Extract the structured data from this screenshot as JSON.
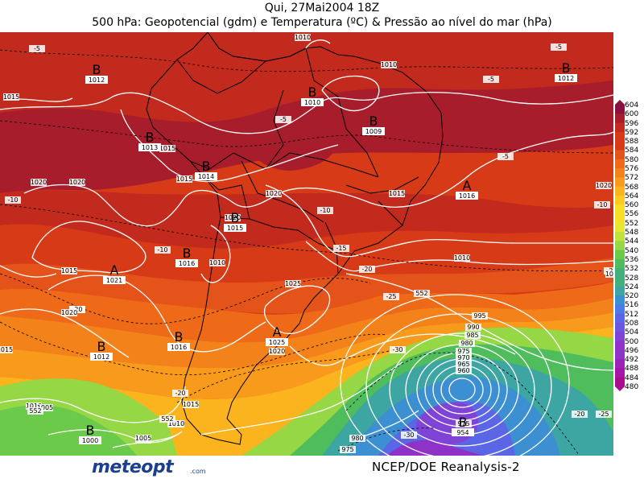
{
  "title": {
    "line1": "Qui, 27Mai2004 18Z",
    "line2": "500 hPa: Geopotencial (gdm) e Temperatura (ºC) & Pressão ao nível do mar (hPa)"
  },
  "colors": {
    "bands": [
      "#8a1040",
      "#a81d2c",
      "#c22a1e",
      "#d73a16",
      "#e4531a",
      "#ee6a18",
      "#f4821a",
      "#f89a1c",
      "#fbb31e",
      "#fdcb1f",
      "#f7de27",
      "#e6e732",
      "#bfe23d",
      "#95d744",
      "#6cca4a",
      "#4fbd5b",
      "#43b07c",
      "#3da6a2",
      "#3c8fd0",
      "#4a7be6",
      "#5a66e6",
      "#6c55e0",
      "#7f44d6",
      "#8f32c8",
      "#9c22b8",
      "#a715a8",
      "#aa0c90"
    ],
    "isobar": "#ffffff",
    "land": "#000000"
  },
  "scale_labels": [
    "604",
    "600",
    "596",
    "592",
    "588",
    "584",
    "580",
    "576",
    "572",
    "568",
    "564",
    "560",
    "556",
    "552",
    "548",
    "544",
    "540",
    "536",
    "532",
    "528",
    "524",
    "520",
    "516",
    "512",
    "508",
    "504",
    "500",
    "496",
    "492",
    "488",
    "484",
    "480"
  ],
  "pressure_centers": [
    {
      "type": "B",
      "value": "1012"
    },
    {
      "type": "B",
      "value": "1013"
    },
    {
      "type": "B",
      "value": "1014"
    },
    {
      "type": "B",
      "value": "1010"
    },
    {
      "type": "B",
      "value": "1009"
    },
    {
      "type": "B",
      "value": "1012"
    },
    {
      "type": "A",
      "value": "1016"
    },
    {
      "type": "B",
      "value": "1015"
    },
    {
      "type": "B",
      "value": "1016"
    },
    {
      "type": "A",
      "value": "1021"
    },
    {
      "type": "B",
      "value": "1012"
    },
    {
      "type": "B",
      "value": "1016"
    },
    {
      "type": "A",
      "value": "1025"
    },
    {
      "type": "B",
      "value": "1000"
    },
    {
      "type": "B",
      "value": "954"
    }
  ],
  "isobar_labels": [
    "1015",
    "1015",
    "1015",
    "1020",
    "1020",
    "1020",
    "1020",
    "1015",
    "1010",
    "1010",
    "1010",
    "1025",
    "1020",
    "1015",
    "1020",
    "1015",
    "1010",
    "1010",
    "1015",
    "1005",
    "1010",
    "1005",
    "1005",
    "995",
    "990",
    "985",
    "980",
    "975",
    "970",
    "965",
    "960",
    "980",
    "975",
    "975",
    "1010",
    "1020",
    "1020"
  ],
  "temperature_labels": [
    "-5",
    "-5",
    "-5",
    "-5",
    "-5",
    "-10",
    "-10",
    "-10",
    "-10",
    "-10",
    "-15",
    "-20",
    "-20",
    "-20",
    "-25",
    "-25",
    "-30",
    "-30",
    "-20",
    "-20"
  ],
  "height_labels": [
    "552",
    "552",
    "552"
  ],
  "branding": {
    "logo": "meteopt",
    "logo_suffix": ".com",
    "source": "NCEP/DOE Reanalysis-2"
  }
}
